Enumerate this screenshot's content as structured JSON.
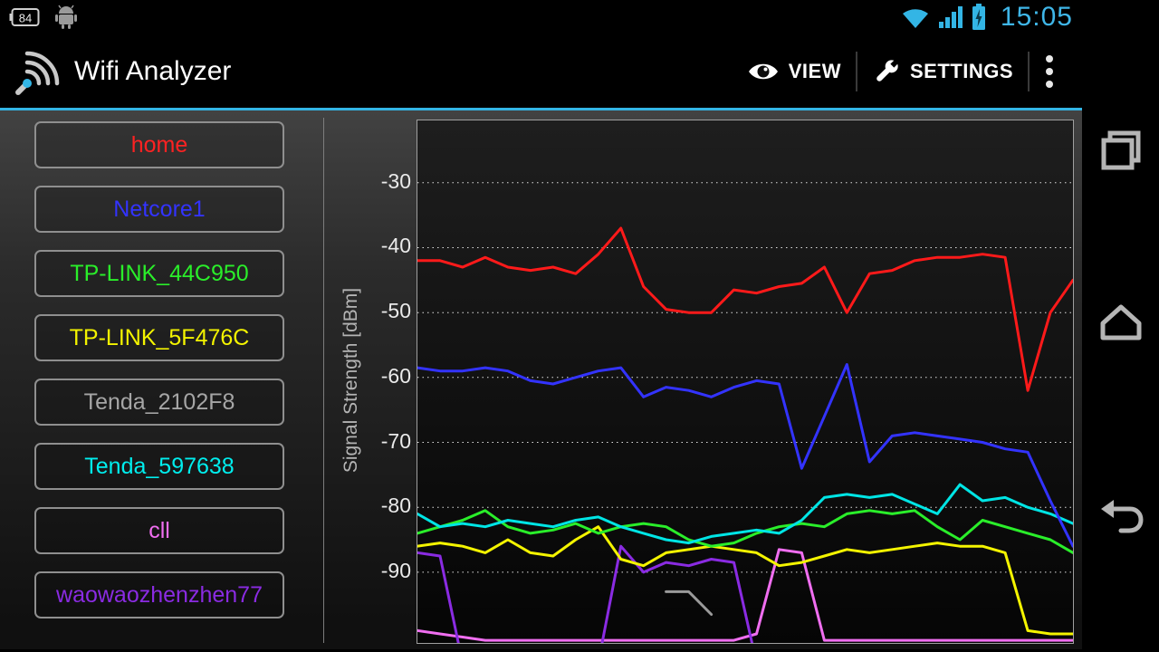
{
  "status_bar": {
    "battery_percent": "84",
    "time": "15:05",
    "accent": "#33b5e5"
  },
  "action_bar": {
    "title": "Wifi Analyzer",
    "view_label": "VIEW",
    "settings_label": "SETTINGS"
  },
  "ap_list": {
    "items": [
      {
        "label": "home",
        "color": "#ff2222"
      },
      {
        "label": "Netcore1",
        "color": "#3333ff"
      },
      {
        "label": "TP-LINK_44C950",
        "color": "#2aee2a"
      },
      {
        "label": "TP-LINK_5F476C",
        "color": "#f4f400"
      },
      {
        "label": "Tenda_2102F8",
        "color": "#a6a6a6"
      },
      {
        "label": "Tenda_597638",
        "color": "#00eeee"
      },
      {
        "label": "cll",
        "color": "#f06ef0"
      },
      {
        "label": "waowaozhenzhen77",
        "color": "#8a2be2"
      }
    ]
  },
  "chart_data": {
    "type": "line",
    "title": "",
    "xlabel": "",
    "ylabel": "Signal Strength [dBm]",
    "yticks": [
      -30,
      -40,
      -50,
      -60,
      -70,
      -80,
      -90
    ],
    "ylim": [
      -100.9,
      -20.4
    ],
    "points": 30,
    "grid": "dotted-horizontal",
    "legend": "left-button-list",
    "series": [
      {
        "name": "Tenda_2102F8",
        "color": "#9a9a9a",
        "values": [
          null,
          null,
          null,
          null,
          null,
          null,
          null,
          null,
          null,
          null,
          null,
          -93,
          -93,
          -96.5,
          null,
          null,
          null,
          null,
          null,
          null,
          null,
          null,
          null,
          null,
          null,
          null,
          null,
          null,
          null,
          null
        ]
      },
      {
        "name": "cll",
        "color": "#f06ef0",
        "values": [
          -99,
          -99.5,
          -100,
          -100.5,
          -100.5,
          -100.5,
          -100.5,
          -100.5,
          -100.5,
          -100.5,
          -100.5,
          -100.5,
          -100.5,
          -100.5,
          -100.5,
          -99.5,
          -86.5,
          -87,
          -100.5,
          -100.5,
          -100.5,
          -100.5,
          -100.5,
          -100.5,
          -100.5,
          -100.5,
          -100.5,
          -100.5,
          -100.5,
          -100.5
        ]
      },
      {
        "name": "waowaozhenzhen77",
        "color": "#8a2be2",
        "values": [
          -87,
          -87.5,
          -104,
          -104,
          -104,
          -104,
          -104,
          -104,
          -104,
          -86,
          -90,
          -88.5,
          -89,
          -88,
          -88.5,
          -104,
          -104,
          -104,
          -104,
          -104,
          -104,
          -104,
          -104,
          -104,
          -104,
          -104,
          -104,
          -104,
          -104,
          -104
        ]
      },
      {
        "name": "TP-LINK_5F476C",
        "color": "#f4f400",
        "values": [
          -86,
          -85.5,
          -86,
          -87,
          -85,
          -87,
          -87.5,
          -85,
          -83,
          -88,
          -89,
          -87,
          -86.5,
          -86,
          -86.5,
          -87,
          -89,
          -88.5,
          -87.5,
          -86.5,
          -87,
          -86.5,
          -86,
          -85.5,
          -86,
          -86,
          -87,
          -99,
          -99.5,
          -99.5
        ]
      },
      {
        "name": "TP-LINK_44C950",
        "color": "#2aee2a",
        "values": [
          -84,
          -83,
          -82,
          -80.5,
          -83,
          -84,
          -83.5,
          -82.5,
          -84,
          -83,
          -82.5,
          -83,
          -85,
          -86,
          -85.5,
          -84,
          -83,
          -82.5,
          -83,
          -81,
          -80.5,
          -81,
          -80.5,
          -83,
          -85,
          -82,
          -83,
          -84,
          -85,
          -87
        ]
      },
      {
        "name": "Tenda_597638",
        "color": "#00e5e5",
        "values": [
          -81,
          -83,
          -82.5,
          -83,
          -82,
          -82.5,
          -83,
          -82,
          -81.5,
          -83,
          -84,
          -85,
          -85.5,
          -84.5,
          -84,
          -83.5,
          -84,
          -82,
          -78.5,
          -78,
          -78.5,
          -78,
          -79.5,
          -81,
          -76.5,
          -79,
          -78.5,
          -80,
          -81,
          -82.5
        ]
      },
      {
        "name": "Netcore1",
        "color": "#3333ff",
        "values": [
          -58.5,
          -59,
          -59,
          -58.5,
          -59,
          -60.5,
          -61,
          -60,
          -59,
          -58.5,
          -63,
          -61.5,
          -62,
          -63,
          -61.5,
          -60.5,
          -61,
          -74,
          -66,
          -58,
          -73,
          -69,
          -68.5,
          -69,
          -69.5,
          -70,
          -71,
          -71.5,
          -79,
          -86
        ]
      },
      {
        "name": "home",
        "color": "#ff1a1a",
        "values": [
          -42,
          -42,
          -43,
          -41.5,
          -43,
          -43.5,
          -43,
          -44,
          -41,
          -37,
          -46,
          -49.5,
          -50,
          -50,
          -46.5,
          -47,
          -46,
          -45.5,
          -43,
          -50,
          -44,
          -43.5,
          -42,
          -41.5,
          -41.5,
          -41,
          -41.5,
          -62,
          -50,
          -45
        ]
      }
    ]
  },
  "nav_bar": {
    "icons": [
      "recents",
      "home",
      "back"
    ]
  }
}
